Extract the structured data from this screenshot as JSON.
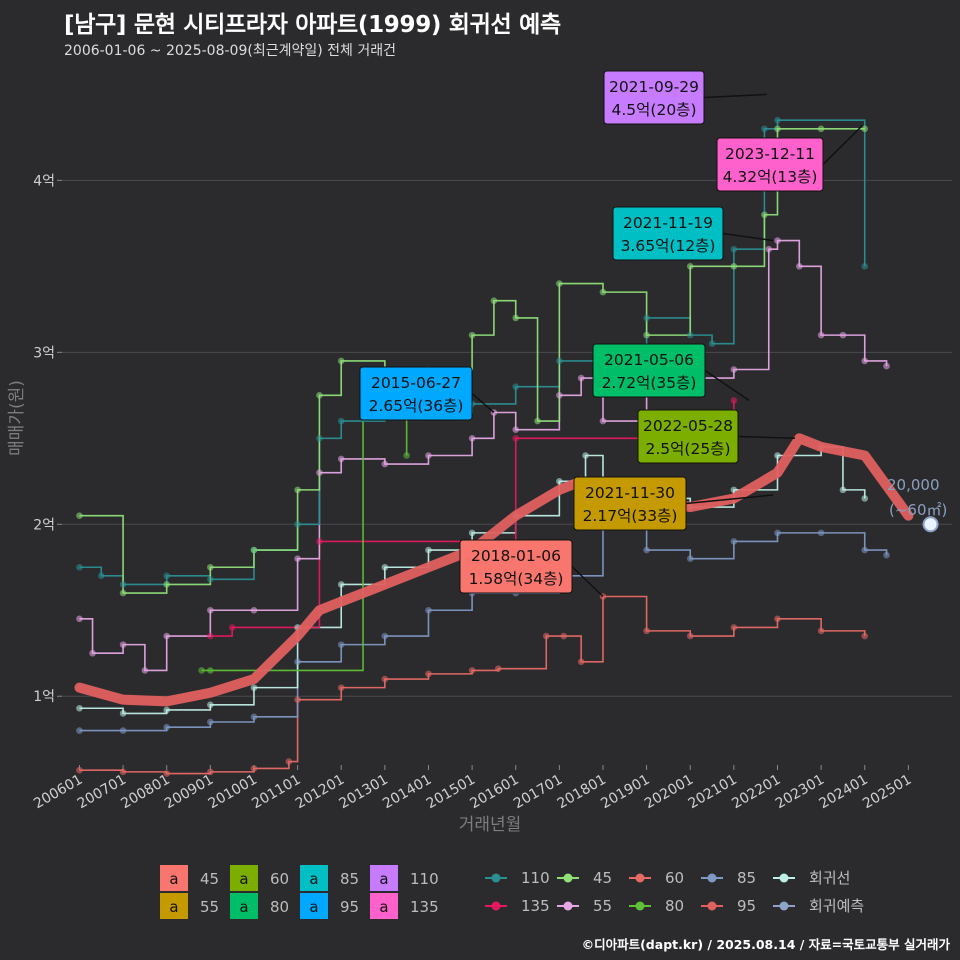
{
  "header": {
    "title": "[남구] 문현 시티프라자 아파트(1999) 회귀선 예측",
    "subtitle": "2006-01-06 ~ 2025-08-09(최근계약일) 전체 거래건",
    "footer": "©디아파트(dapt.kr) / 2025.08.14 / 자료=국토교통부 실거래가"
  },
  "colors": {
    "bg": "#2b2b2d",
    "s45": "#f8766d",
    "s55": "#c49a00",
    "s60": "#7cae00",
    "s80": "#00be67",
    "s85": "#00bfc4",
    "s95": "#00a9ff",
    "s110": "#c77cff",
    "s135": "#ff61cc",
    "line110": "#2a8f93",
    "line135": "#90e07a",
    "line45": "#e86a66",
    "line55": "#7f98c4",
    "line60": "#bfeee6",
    "line80": "#e5195e",
    "line85": "#e6a6e6",
    "line95": "#5fbf36",
    "regression": "#e06060",
    "forecast": "#8ea3c9"
  },
  "chart_data": {
    "type": "scatter",
    "title": "[남구] 문현 시티프라자 아파트(1999) 회귀선 예측",
    "xlabel": "거래년월",
    "ylabel": "매매가(원)",
    "x_ticks": [
      "200601",
      "200701",
      "200801",
      "200901",
      "201001",
      "201101",
      "201201",
      "201301",
      "201401",
      "201501",
      "201601",
      "201701",
      "201801",
      "201901",
      "202001",
      "202101",
      "202201",
      "202301",
      "202401",
      "202501"
    ],
    "y_ticks": [
      {
        "value": 1.0,
        "label": "1억"
      },
      {
        "value": 2.0,
        "label": "2억"
      },
      {
        "value": 3.0,
        "label": "3억"
      },
      {
        "value": 4.0,
        "label": "4억"
      }
    ],
    "ylim": [
      0.6,
      4.7
    ],
    "grid": true,
    "legend_position": "bottom",
    "legend_type_labels": [
      "45",
      "55",
      "60",
      "80",
      "85",
      "95",
      "110",
      "135"
    ],
    "legend_line_labels": [
      "110",
      "45",
      "60",
      "85",
      "회귀선",
      "135",
      "55",
      "80",
      "95",
      "회귀예측"
    ],
    "series": [
      {
        "name": "45",
        "color": "#e86a66",
        "points": [
          [
            2006.0,
            0.57
          ],
          [
            2007.0,
            0.56
          ],
          [
            2008.0,
            0.55
          ],
          [
            2009.0,
            0.56
          ],
          [
            2010.0,
            0.58
          ],
          [
            2010.8,
            0.62
          ],
          [
            2011.0,
            0.98
          ],
          [
            2012.0,
            1.05
          ],
          [
            2013.0,
            1.1
          ],
          [
            2014.0,
            1.13
          ],
          [
            2015.0,
            1.15
          ],
          [
            2015.6,
            1.16
          ],
          [
            2016.7,
            1.35
          ],
          [
            2017.1,
            1.35
          ],
          [
            2017.5,
            1.2
          ],
          [
            2018.0,
            1.58
          ],
          [
            2019.0,
            1.38
          ],
          [
            2020.0,
            1.35
          ],
          [
            2021.0,
            1.4
          ],
          [
            2022.0,
            1.45
          ],
          [
            2023.0,
            1.38
          ],
          [
            2024.0,
            1.35
          ]
        ]
      },
      {
        "name": "55",
        "color": "#7f98c4",
        "points": [
          [
            2006.0,
            0.8
          ],
          [
            2007.0,
            0.8
          ],
          [
            2008.0,
            0.82
          ],
          [
            2009.0,
            0.85
          ],
          [
            2010.0,
            0.88
          ],
          [
            2011.0,
            1.2
          ],
          [
            2012.0,
            1.3
          ],
          [
            2013.0,
            1.35
          ],
          [
            2014.0,
            1.5
          ],
          [
            2015.0,
            1.6
          ],
          [
            2016.0,
            1.6
          ],
          [
            2017.0,
            1.7
          ],
          [
            2018.0,
            2.0
          ],
          [
            2019.0,
            1.85
          ],
          [
            2020.0,
            1.8
          ],
          [
            2021.0,
            1.9
          ],
          [
            2022.0,
            1.95
          ],
          [
            2023.0,
            1.95
          ],
          [
            2024.0,
            1.85
          ],
          [
            2024.5,
            1.82
          ]
        ]
      },
      {
        "name": "60",
        "color": "#bfeee6",
        "points": [
          [
            2006.0,
            0.93
          ],
          [
            2007.0,
            0.9
          ],
          [
            2008.0,
            0.92
          ],
          [
            2009.0,
            0.95
          ],
          [
            2010.0,
            1.05
          ],
          [
            2011.0,
            1.4
          ],
          [
            2012.0,
            1.65
          ],
          [
            2013.0,
            1.75
          ],
          [
            2014.0,
            1.85
          ],
          [
            2015.0,
            1.95
          ],
          [
            2016.0,
            2.05
          ],
          [
            2017.0,
            2.25
          ],
          [
            2017.6,
            2.4
          ],
          [
            2018.0,
            2.2
          ],
          [
            2019.0,
            2.15
          ],
          [
            2020.0,
            2.1
          ],
          [
            2021.0,
            2.2
          ],
          [
            2022.0,
            2.4
          ],
          [
            2023.0,
            2.45
          ],
          [
            2023.5,
            2.2
          ],
          [
            2024.0,
            2.15
          ]
        ]
      },
      {
        "name": "80",
        "color": "#e5195e",
        "points": [
          [
            2009.0,
            1.35
          ],
          [
            2009.5,
            1.4
          ],
          [
            2011.5,
            1.9
          ],
          [
            2016.0,
            2.5
          ],
          [
            2021.0,
            2.72
          ]
        ]
      },
      {
        "name": "85",
        "color": "#e6a6e6",
        "points": [
          [
            2006.0,
            1.45
          ],
          [
            2006.3,
            1.25
          ],
          [
            2007.0,
            1.3
          ],
          [
            2007.5,
            1.15
          ],
          [
            2008.0,
            1.35
          ],
          [
            2009.0,
            1.5
          ],
          [
            2010.0,
            1.5
          ],
          [
            2011.0,
            1.8
          ],
          [
            2011.5,
            2.3
          ],
          [
            2012.0,
            2.38
          ],
          [
            2013.0,
            2.35
          ],
          [
            2014.0,
            2.4
          ],
          [
            2015.0,
            2.5
          ],
          [
            2015.5,
            2.65
          ],
          [
            2016.0,
            2.55
          ],
          [
            2017.0,
            2.75
          ],
          [
            2017.5,
            2.85
          ],
          [
            2018.0,
            2.6
          ],
          [
            2019.0,
            2.8
          ],
          [
            2020.0,
            2.85
          ],
          [
            2021.0,
            2.9
          ],
          [
            2021.8,
            3.6
          ],
          [
            2022.0,
            3.65
          ],
          [
            2022.5,
            3.5
          ],
          [
            2023.0,
            3.1
          ],
          [
            2023.5,
            3.1
          ],
          [
            2024.0,
            2.95
          ],
          [
            2024.5,
            2.92
          ]
        ]
      },
      {
        "name": "95",
        "color": "#5fbf36",
        "points": [
          [
            2008.8,
            1.15
          ],
          [
            2009.0,
            1.15
          ],
          [
            2012.5,
            2.85
          ],
          [
            2013.5,
            2.4
          ]
        ]
      },
      {
        "name": "110",
        "color": "#2a8f93",
        "points": [
          [
            2006.0,
            1.75
          ],
          [
            2006.5,
            1.7
          ],
          [
            2007.0,
            1.65
          ],
          [
            2008.0,
            1.7
          ],
          [
            2009.0,
            1.68
          ],
          [
            2010.0,
            1.85
          ],
          [
            2011.0,
            2.0
          ],
          [
            2011.5,
            2.5
          ],
          [
            2012.0,
            2.6
          ],
          [
            2013.0,
            2.65
          ],
          [
            2015.0,
            2.7
          ],
          [
            2016.0,
            2.8
          ],
          [
            2017.0,
            2.95
          ],
          [
            2018.0,
            3.0
          ],
          [
            2019.0,
            3.2
          ],
          [
            2020.0,
            3.1
          ],
          [
            2020.5,
            3.05
          ],
          [
            2021.0,
            3.6
          ],
          [
            2021.7,
            4.3
          ],
          [
            2022.0,
            4.35
          ],
          [
            2024.0,
            3.5
          ]
        ]
      },
      {
        "name": "135",
        "color": "#90e07a",
        "points": [
          [
            2006.0,
            2.05
          ],
          [
            2007.0,
            1.6
          ],
          [
            2008.0,
            1.65
          ],
          [
            2009.0,
            1.75
          ],
          [
            2010.0,
            1.85
          ],
          [
            2011.0,
            2.2
          ],
          [
            2011.5,
            2.75
          ],
          [
            2012.0,
            2.95
          ],
          [
            2013.0,
            2.85
          ],
          [
            2014.0,
            2.9
          ],
          [
            2015.0,
            3.1
          ],
          [
            2015.5,
            3.3
          ],
          [
            2016.0,
            3.2
          ],
          [
            2016.5,
            2.6
          ],
          [
            2017.0,
            3.4
          ],
          [
            2018.0,
            3.35
          ],
          [
            2019.0,
            3.1
          ],
          [
            2020.0,
            3.5
          ],
          [
            2021.0,
            3.5
          ],
          [
            2021.7,
            3.8
          ],
          [
            2022.0,
            4.3
          ],
          [
            2023.0,
            4.3
          ],
          [
            2024.0,
            4.3
          ]
        ]
      }
    ],
    "regression": {
      "name": "회귀선",
      "color": "#e06060",
      "points": [
        [
          2006.0,
          1.05
        ],
        [
          2007.0,
          0.98
        ],
        [
          2008.0,
          0.97
        ],
        [
          2009.0,
          1.02
        ],
        [
          2010.0,
          1.1
        ],
        [
          2011.0,
          1.35
        ],
        [
          2011.5,
          1.5
        ],
        [
          2012.0,
          1.55
        ],
        [
          2013.0,
          1.65
        ],
        [
          2014.0,
          1.75
        ],
        [
          2015.0,
          1.85
        ],
        [
          2015.5,
          1.95
        ],
        [
          2016.0,
          2.05
        ],
        [
          2017.0,
          2.2
        ],
        [
          2017.5,
          2.25
        ],
        [
          2018.0,
          2.2
        ],
        [
          2019.0,
          2.15
        ],
        [
          2020.0,
          2.1
        ],
        [
          2021.0,
          2.15
        ],
        [
          2022.0,
          2.3
        ],
        [
          2022.5,
          2.5
        ],
        [
          2023.0,
          2.45
        ],
        [
          2024.0,
          2.4
        ],
        [
          2025.0,
          2.05
        ]
      ]
    },
    "forecast": {
      "name": "회귀예측",
      "color": "#8ea3c9",
      "points": [
        [
          2025.0,
          2.0
        ]
      ]
    },
    "endpoint": {
      "value_label": "20,000",
      "area_label": "(~60㎡)",
      "x": 2025.6,
      "y": 2.0
    },
    "callouts": [
      {
        "date": "2021-09-29",
        "text": "4.5억(20층)",
        "color": "#c77cff",
        "x": 2021.75,
        "y": 4.5
      },
      {
        "date": "2023-12-11",
        "text": "4.32억(13층)",
        "color": "#ff61cc",
        "x": 2023.95,
        "y": 4.32
      },
      {
        "date": "2021-11-19",
        "text": "3.65억(12층)",
        "color": "#00bfc4",
        "x": 2021.9,
        "y": 3.65
      },
      {
        "date": "2015-06-27",
        "text": "2.65억(36층)",
        "color": "#00a9ff",
        "x": 2015.5,
        "y": 2.65
      },
      {
        "date": "2021-05-06",
        "text": "2.72억(35층)",
        "color": "#00be67",
        "x": 2021.35,
        "y": 2.72
      },
      {
        "date": "2022-05-28",
        "text": "2.5억(25층)",
        "color": "#7cae00",
        "x": 2022.4,
        "y": 2.5
      },
      {
        "date": "2021-11-30",
        "text": "2.17억(33층)",
        "color": "#c49a00",
        "x": 2021.9,
        "y": 2.17
      },
      {
        "date": "2018-01-06",
        "text": "1.58억(34층)",
        "color": "#f8766d",
        "x": 2018.0,
        "y": 1.58
      }
    ]
  }
}
